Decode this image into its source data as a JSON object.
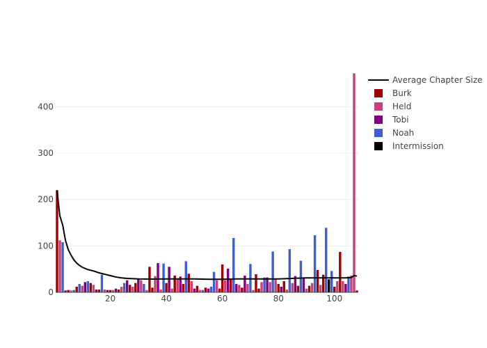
{
  "chart_data": {
    "type": "bar",
    "title": "",
    "xlabel": "",
    "ylabel": "",
    "xlim": [
      0.5,
      108.5
    ],
    "ylim": [
      0,
      480
    ],
    "x_ticks": [
      20,
      40,
      60,
      80,
      100
    ],
    "y_ticks": [
      0,
      100,
      200,
      300,
      400
    ],
    "grid": "horizontal",
    "legend_placement": "top-right",
    "colors": {
      "Burk": "#a00000",
      "Held": "#c8427a",
      "Tobi": "#800080",
      "Noah": "#3f5fd0",
      "Intermission": "#000000",
      "Average Chapter Size": "#000000"
    },
    "legend": [
      {
        "name": "Average Chapter Size",
        "kind": "line"
      },
      {
        "name": "Burk",
        "kind": "bar"
      },
      {
        "name": "Held",
        "kind": "bar"
      },
      {
        "name": "Tobi",
        "kind": "bar"
      },
      {
        "name": "Noah",
        "kind": "bar"
      },
      {
        "name": "Intermission",
        "kind": "bar"
      }
    ],
    "bars": [
      {
        "x": 1,
        "y": 220,
        "series": "Burk"
      },
      {
        "x": 2,
        "y": 112,
        "series": "Held"
      },
      {
        "x": 3,
        "y": 108,
        "series": "Noah"
      },
      {
        "x": 4,
        "y": 4,
        "series": "Tobi"
      },
      {
        "x": 5,
        "y": 5,
        "series": "Burk"
      },
      {
        "x": 6,
        "y": 4,
        "series": "Held"
      },
      {
        "x": 7,
        "y": 5,
        "series": "Noah"
      },
      {
        "x": 8,
        "y": 12,
        "series": "Burk"
      },
      {
        "x": 9,
        "y": 18,
        "series": "Noah"
      },
      {
        "x": 10,
        "y": 14,
        "series": "Held"
      },
      {
        "x": 11,
        "y": 22,
        "series": "Tobi"
      },
      {
        "x": 12,
        "y": 24,
        "series": "Noah"
      },
      {
        "x": 13,
        "y": 20,
        "series": "Burk"
      },
      {
        "x": 14,
        "y": 16,
        "series": "Held"
      },
      {
        "x": 15,
        "y": 6,
        "series": "Tobi"
      },
      {
        "x": 16,
        "y": 6,
        "series": "Burk"
      },
      {
        "x": 17,
        "y": 38,
        "series": "Noah"
      },
      {
        "x": 18,
        "y": 6,
        "series": "Held"
      },
      {
        "x": 19,
        "y": 5,
        "series": "Tobi"
      },
      {
        "x": 20,
        "y": 5,
        "series": "Burk"
      },
      {
        "x": 21,
        "y": 5,
        "series": "Held"
      },
      {
        "x": 22,
        "y": 8,
        "series": "Tobi"
      },
      {
        "x": 23,
        "y": 6,
        "series": "Burk"
      },
      {
        "x": 24,
        "y": 12,
        "series": "Held"
      },
      {
        "x": 25,
        "y": 20,
        "series": "Noah"
      },
      {
        "x": 26,
        "y": 26,
        "series": "Tobi"
      },
      {
        "x": 27,
        "y": 16,
        "series": "Burk"
      },
      {
        "x": 28,
        "y": 12,
        "series": "Held"
      },
      {
        "x": 29,
        "y": 20,
        "series": "Burk"
      },
      {
        "x": 30,
        "y": 28,
        "series": "Tobi"
      },
      {
        "x": 31,
        "y": 26,
        "series": "Held"
      },
      {
        "x": 32,
        "y": 18,
        "series": "Noah"
      },
      {
        "x": 33,
        "y": 5,
        "series": "Held"
      },
      {
        "x": 34,
        "y": 55,
        "series": "Burk"
      },
      {
        "x": 35,
        "y": 10,
        "series": "Burk"
      },
      {
        "x": 36,
        "y": 35,
        "series": "Held"
      },
      {
        "x": 37,
        "y": 63,
        "series": "Tobi"
      },
      {
        "x": 38,
        "y": 6,
        "series": "Held"
      },
      {
        "x": 39,
        "y": 62,
        "series": "Noah"
      },
      {
        "x": 40,
        "y": 20,
        "series": "Burk"
      },
      {
        "x": 41,
        "y": 55,
        "series": "Tobi"
      },
      {
        "x": 42,
        "y": 8,
        "series": "Held"
      },
      {
        "x": 43,
        "y": 36,
        "series": "Burk"
      },
      {
        "x": 44,
        "y": 28,
        "series": "Held"
      },
      {
        "x": 45,
        "y": 34,
        "series": "Tobi"
      },
      {
        "x": 46,
        "y": 18,
        "series": "Burk"
      },
      {
        "x": 47,
        "y": 67,
        "series": "Noah"
      },
      {
        "x": 48,
        "y": 40,
        "series": "Burk"
      },
      {
        "x": 49,
        "y": 24,
        "series": "Held"
      },
      {
        "x": 50,
        "y": 8,
        "series": "Tobi"
      },
      {
        "x": 51,
        "y": 14,
        "series": "Burk"
      },
      {
        "x": 52,
        "y": 5,
        "series": "Held"
      },
      {
        "x": 53,
        "y": 5,
        "series": "Noah"
      },
      {
        "x": 54,
        "y": 10,
        "series": "Burk"
      },
      {
        "x": 55,
        "y": 8,
        "series": "Tobi"
      },
      {
        "x": 56,
        "y": 12,
        "series": "Noah"
      },
      {
        "x": 57,
        "y": 44,
        "series": "Noah"
      },
      {
        "x": 58,
        "y": 26,
        "series": "Held"
      },
      {
        "x": 59,
        "y": 8,
        "series": "Burk"
      },
      {
        "x": 60,
        "y": 60,
        "series": "Burk"
      },
      {
        "x": 61,
        "y": 26,
        "series": "Held"
      },
      {
        "x": 62,
        "y": 51,
        "series": "Tobi"
      },
      {
        "x": 63,
        "y": 28,
        "series": "Burk"
      },
      {
        "x": 64,
        "y": 117,
        "series": "Noah"
      },
      {
        "x": 65,
        "y": 18,
        "series": "Tobi"
      },
      {
        "x": 66,
        "y": 16,
        "series": "Held"
      },
      {
        "x": 67,
        "y": 10,
        "series": "Burk"
      },
      {
        "x": 68,
        "y": 36,
        "series": "Tobi"
      },
      {
        "x": 69,
        "y": 18,
        "series": "Held"
      },
      {
        "x": 70,
        "y": 61,
        "series": "Noah"
      },
      {
        "x": 71,
        "y": 5,
        "series": "Held"
      },
      {
        "x": 72,
        "y": 39,
        "series": "Burk"
      },
      {
        "x": 73,
        "y": 8,
        "series": "Burk"
      },
      {
        "x": 74,
        "y": 22,
        "series": "Held"
      },
      {
        "x": 75,
        "y": 32,
        "series": "Noah"
      },
      {
        "x": 76,
        "y": 32,
        "series": "Tobi"
      },
      {
        "x": 77,
        "y": 22,
        "series": "Held"
      },
      {
        "x": 78,
        "y": 88,
        "series": "Noah"
      },
      {
        "x": 79,
        "y": 28,
        "series": "Held"
      },
      {
        "x": 80,
        "y": 18,
        "series": "Burk"
      },
      {
        "x": 81,
        "y": 12,
        "series": "Tobi"
      },
      {
        "x": 82,
        "y": 24,
        "series": "Burk"
      },
      {
        "x": 83,
        "y": 6,
        "series": "Held"
      },
      {
        "x": 84,
        "y": 93,
        "series": "Noah"
      },
      {
        "x": 85,
        "y": 20,
        "series": "Held"
      },
      {
        "x": 86,
        "y": 35,
        "series": "Tobi"
      },
      {
        "x": 87,
        "y": 14,
        "series": "Burk"
      },
      {
        "x": 88,
        "y": 68,
        "series": "Noah"
      },
      {
        "x": 89,
        "y": 32,
        "series": "Tobi"
      },
      {
        "x": 90,
        "y": 8,
        "series": "Held"
      },
      {
        "x": 91,
        "y": 14,
        "series": "Burk"
      },
      {
        "x": 92,
        "y": 20,
        "series": "Held"
      },
      {
        "x": 93,
        "y": 123,
        "series": "Noah"
      },
      {
        "x": 94,
        "y": 48,
        "series": "Burk"
      },
      {
        "x": 95,
        "y": 16,
        "series": "Held"
      },
      {
        "x": 96,
        "y": 38,
        "series": "Burk"
      },
      {
        "x": 97,
        "y": 139,
        "series": "Noah"
      },
      {
        "x": 98,
        "y": 28,
        "series": "Intermission"
      },
      {
        "x": 99,
        "y": 46,
        "series": "Noah"
      },
      {
        "x": 100,
        "y": 12,
        "series": "Burk"
      },
      {
        "x": 101,
        "y": 24,
        "series": "Held"
      },
      {
        "x": 102,
        "y": 87,
        "series": "Burk"
      },
      {
        "x": 103,
        "y": 24,
        "series": "Held"
      },
      {
        "x": 104,
        "y": 18,
        "series": "Tobi"
      },
      {
        "x": 105,
        "y": 34,
        "series": "Noah"
      },
      {
        "x": 106,
        "y": 36,
        "series": "Held"
      },
      {
        "x": 107,
        "y": 472,
        "series": "Held"
      },
      {
        "x": 108,
        "y": 4,
        "series": "Burk"
      }
    ],
    "average_line": [
      [
        1,
        220
      ],
      [
        2,
        165
      ],
      [
        3,
        145
      ],
      [
        4,
        112
      ],
      [
        5,
        92
      ],
      [
        6,
        80
      ],
      [
        7,
        70
      ],
      [
        8,
        63
      ],
      [
        9,
        58
      ],
      [
        10,
        54
      ],
      [
        12,
        49
      ],
      [
        14,
        46
      ],
      [
        16,
        42
      ],
      [
        18,
        39
      ],
      [
        20,
        36
      ],
      [
        22,
        33
      ],
      [
        24,
        31
      ],
      [
        26,
        30
      ],
      [
        30,
        29
      ],
      [
        35,
        28.5
      ],
      [
        40,
        29
      ],
      [
        45,
        29
      ],
      [
        50,
        29
      ],
      [
        55,
        28
      ],
      [
        60,
        28
      ],
      [
        65,
        29
      ],
      [
        70,
        29
      ],
      [
        75,
        29
      ],
      [
        80,
        29
      ],
      [
        85,
        30
      ],
      [
        90,
        31
      ],
      [
        95,
        31
      ],
      [
        100,
        31
      ],
      [
        104,
        31
      ],
      [
        106,
        32
      ],
      [
        107,
        36
      ],
      [
        108,
        35
      ]
    ]
  }
}
